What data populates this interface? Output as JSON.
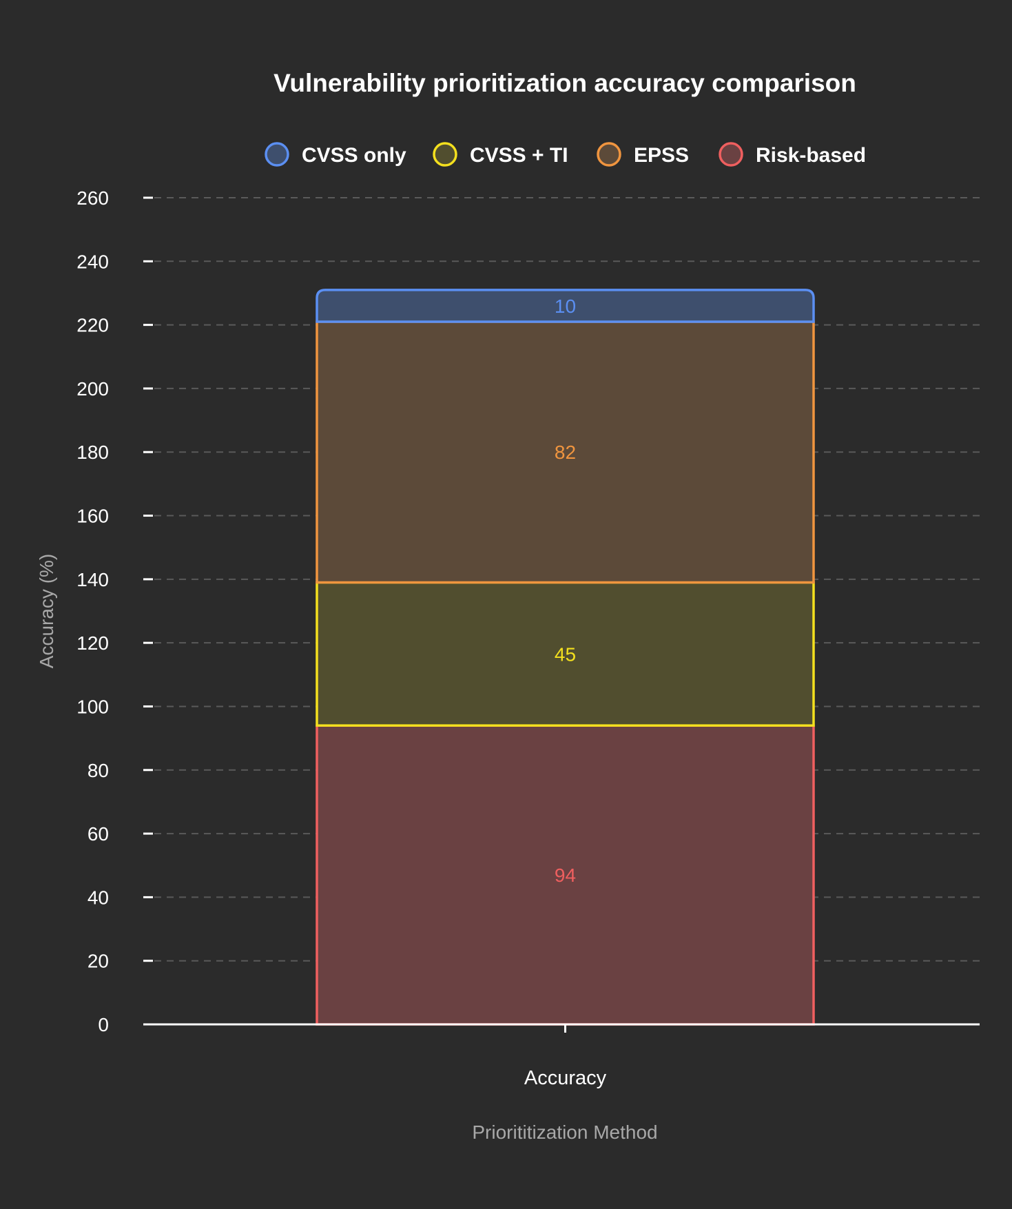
{
  "chart_data": {
    "type": "bar",
    "stacked": true,
    "title": "Vulnerability prioritization accuracy comparison",
    "xlabel": "Priorititization Method",
    "ylabel": "Accuracy (%)",
    "categories": [
      "Accuracy"
    ],
    "ylim": [
      0,
      260
    ],
    "yticks": [
      0,
      20,
      40,
      60,
      80,
      100,
      120,
      140,
      160,
      180,
      200,
      220,
      240,
      260
    ],
    "grid": true,
    "legend_position": "top",
    "series": [
      {
        "name": "CVSS only",
        "values": [
          10
        ],
        "color": "#5b8ff2",
        "fill": "#3e4f6d"
      },
      {
        "name": "CVSS + TI",
        "values": [
          45
        ],
        "color": "#f4e01e",
        "fill": "#514e2f"
      },
      {
        "name": "EPSS",
        "values": [
          82
        ],
        "color": "#f0953f",
        "fill": "#5c4a39"
      },
      {
        "name": "Risk-based",
        "values": [
          94
        ],
        "color": "#ef5f5f",
        "fill": "#6a4142"
      }
    ],
    "stack_order": [
      "Risk-based",
      "CVSS + TI",
      "EPSS",
      "CVSS only"
    ]
  }
}
